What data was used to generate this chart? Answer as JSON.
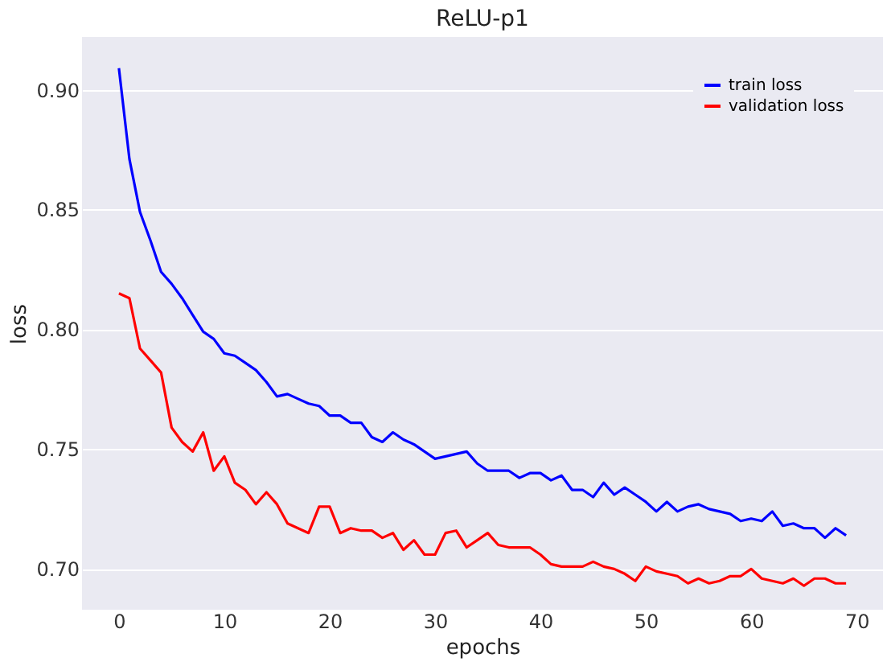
{
  "chart_data": {
    "type": "line",
    "title": "ReLU-p1",
    "xlabel": "epochs",
    "ylabel": "loss",
    "x": [
      0,
      1,
      2,
      3,
      4,
      5,
      6,
      7,
      8,
      9,
      10,
      11,
      12,
      13,
      14,
      15,
      16,
      17,
      18,
      19,
      20,
      21,
      22,
      23,
      24,
      25,
      26,
      27,
      28,
      29,
      30,
      31,
      32,
      33,
      34,
      35,
      36,
      37,
      38,
      39,
      40,
      41,
      42,
      43,
      44,
      45,
      46,
      47,
      48,
      49,
      50,
      51,
      52,
      53,
      54,
      55,
      56,
      57,
      58,
      59,
      60,
      61,
      62,
      63,
      64,
      65,
      66,
      67,
      68,
      69
    ],
    "series": [
      {
        "name": "train loss",
        "color": "#0000ff",
        "values": [
          0.909,
          0.871,
          0.849,
          0.837,
          0.824,
          0.819,
          0.813,
          0.806,
          0.799,
          0.796,
          0.79,
          0.789,
          0.786,
          0.783,
          0.778,
          0.772,
          0.773,
          0.771,
          0.769,
          0.768,
          0.764,
          0.764,
          0.761,
          0.761,
          0.755,
          0.753,
          0.757,
          0.754,
          0.752,
          0.749,
          0.746,
          0.747,
          0.748,
          0.749,
          0.744,
          0.741,
          0.741,
          0.741,
          0.738,
          0.74,
          0.74,
          0.737,
          0.739,
          0.733,
          0.733,
          0.73,
          0.736,
          0.731,
          0.734,
          0.731,
          0.728,
          0.724,
          0.728,
          0.724,
          0.726,
          0.727,
          0.725,
          0.724,
          0.723,
          0.72,
          0.721,
          0.72,
          0.724,
          0.718,
          0.719,
          0.717,
          0.717,
          0.713,
          0.717,
          0.714
        ]
      },
      {
        "name": "validation loss",
        "color": "#ff0000",
        "values": [
          0.815,
          0.813,
          0.792,
          0.787,
          0.782,
          0.759,
          0.753,
          0.749,
          0.757,
          0.741,
          0.747,
          0.736,
          0.733,
          0.727,
          0.732,
          0.727,
          0.719,
          0.717,
          0.715,
          0.726,
          0.726,
          0.715,
          0.717,
          0.716,
          0.716,
          0.713,
          0.715,
          0.708,
          0.712,
          0.706,
          0.706,
          0.715,
          0.716,
          0.709,
          0.712,
          0.715,
          0.71,
          0.709,
          0.709,
          0.709,
          0.706,
          0.702,
          0.701,
          0.701,
          0.701,
          0.703,
          0.701,
          0.7,
          0.698,
          0.695,
          0.701,
          0.699,
          0.698,
          0.697,
          0.694,
          0.696,
          0.694,
          0.695,
          0.697,
          0.697,
          0.7,
          0.696,
          0.695,
          0.694,
          0.696,
          0.693,
          0.696,
          0.696,
          0.694,
          0.694
        ]
      }
    ],
    "xlim": [
      -3.5,
      72.5
    ],
    "xticks": [
      0,
      10,
      20,
      30,
      40,
      50,
      60,
      70
    ],
    "ylim": [
      0.683,
      0.922
    ],
    "yticks": [
      {
        "value": 0.7,
        "label": "0.70"
      },
      0.75,
      {
        "value": 0.8,
        "label": "0.80"
      },
      0.85,
      {
        "value": 0.9,
        "label": "0.90"
      }
    ],
    "grid": "y",
    "legend": "top right",
    "marker": "none",
    "line_style": "solid"
  }
}
